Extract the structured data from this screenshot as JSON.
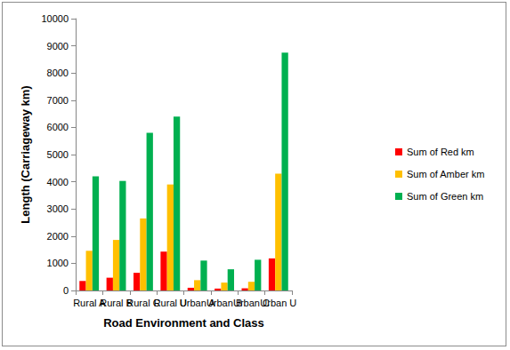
{
  "chart_data": {
    "type": "bar",
    "x_label": "Road Environment and Class",
    "y_label": "Length (Carriageway km)",
    "categories": [
      "Rural A",
      "Rural B",
      "Rural C",
      "Rural U",
      "Urban A",
      "Urban B",
      "Urban C",
      "Urban U"
    ],
    "series": [
      {
        "name": "Sum of Red km",
        "color": "#ff0000",
        "values": [
          350,
          470,
          650,
          1430,
          100,
          70,
          80,
          1180
        ]
      },
      {
        "name": "Sum of Amber km",
        "color": "#ffc000",
        "values": [
          1460,
          1860,
          2650,
          3900,
          380,
          290,
          320,
          4300
        ]
      },
      {
        "name": "Sum of Green km",
        "color": "#00b050",
        "values": [
          4200,
          4030,
          5800,
          6400,
          1100,
          780,
          1130,
          8750
        ]
      }
    ],
    "ylim": [
      0,
      10000
    ],
    "yticks": [
      0,
      1000,
      2000,
      3000,
      4000,
      5000,
      6000,
      7000,
      8000,
      9000,
      10000
    ],
    "grid": false,
    "legend": "right"
  }
}
